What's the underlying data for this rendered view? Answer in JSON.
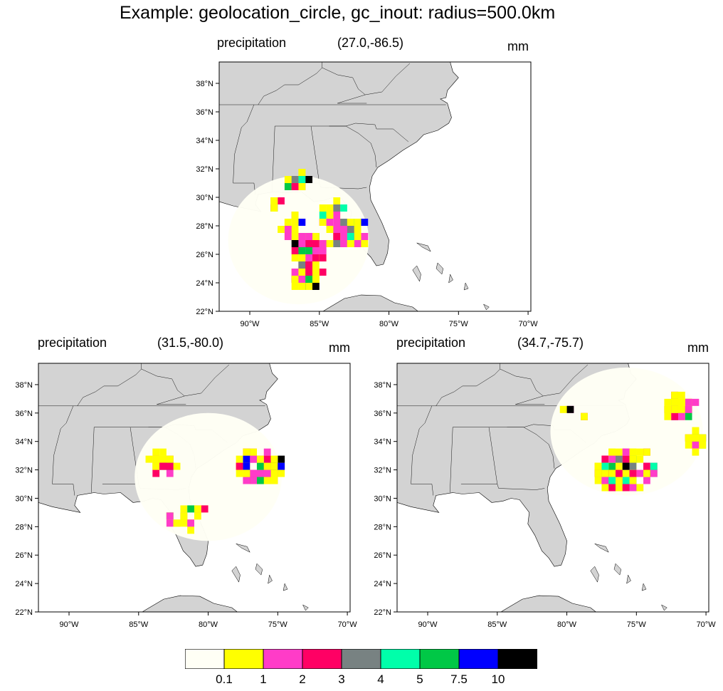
{
  "title": "Example: geolocation_circle, gc_inout: radius=500.0km",
  "panels": [
    {
      "id": "top",
      "left_label": "precipitation",
      "center_label": "(27.0,-86.5)",
      "right_label": "mm",
      "center": {
        "lat": 27.0,
        "lon": -86.5
      }
    },
    {
      "id": "bottom-left",
      "left_label": "precipitation",
      "center_label": "(31.5,-80.0)",
      "right_label": "mm",
      "center": {
        "lat": 31.5,
        "lon": -80.0
      }
    },
    {
      "id": "bottom-right",
      "left_label": "precipitation",
      "center_label": "(34.7,-75.7)",
      "right_label": "mm",
      "center": {
        "lat": 34.7,
        "lon": -75.7
      }
    }
  ],
  "map": {
    "lat_range": [
      22,
      39.5
    ],
    "lon_range": [
      -92.2,
      -69.8
    ],
    "lat_ticks": [
      "22°N",
      "24°N",
      "26°N",
      "28°N",
      "30°N",
      "32°N",
      "34°N",
      "36°N",
      "38°N"
    ],
    "lon_ticks": [
      "90°W",
      "85°W",
      "80°W",
      "75°W",
      "70°W"
    ],
    "land_color": "#d3d3d3",
    "circle_fill": "#fffff5"
  },
  "legend": {
    "colors": [
      "#fffff5",
      "#ffff00",
      "#ff3cc8",
      "#ff0064",
      "#788282",
      "#00ffaa",
      "#00c846",
      "#0000ff",
      "#000000"
    ],
    "labels": [
      "0.1",
      "1",
      "2",
      "3",
      "4",
      "5",
      "7.5",
      "10"
    ]
  }
}
